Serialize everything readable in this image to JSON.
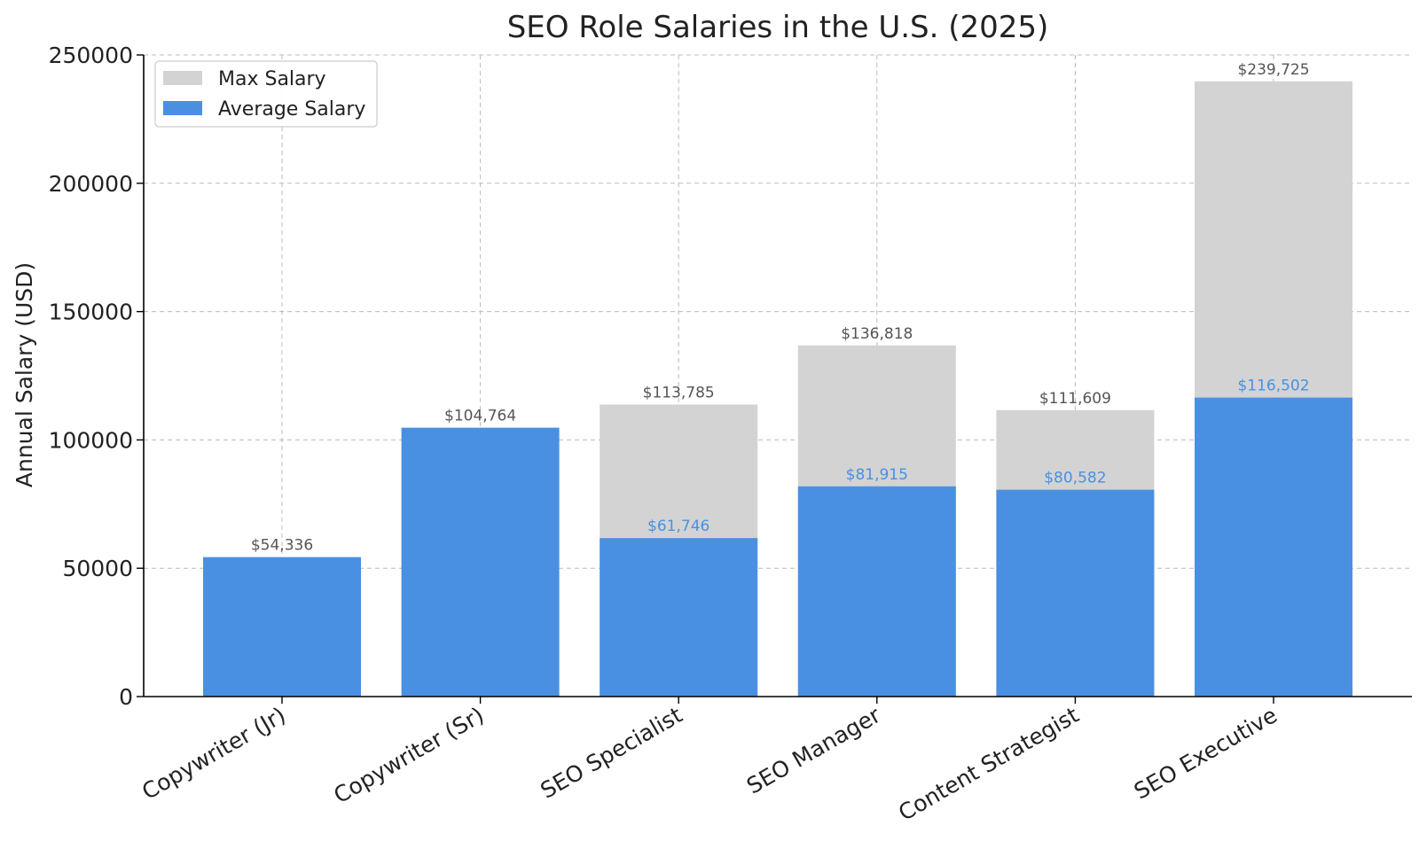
{
  "chart_data": {
    "type": "bar",
    "title": "SEO Role Salaries in the U.S. (2025)",
    "xlabel": "",
    "ylabel": "Annual Salary (USD)",
    "categories": [
      "Copywriter (Jr)",
      "Copywriter (Sr)",
      "SEO Specialist",
      "SEO Manager",
      "Content Strategist",
      "SEO Executive"
    ],
    "series": [
      {
        "name": "Max Salary",
        "values": [
          null,
          null,
          113785,
          136818,
          111609,
          239725
        ],
        "labels": [
          "",
          "",
          "$113,785",
          "$136,818",
          "$111,609",
          "$239,725"
        ],
        "color": "#d3d3d3",
        "label_color": "#555555"
      },
      {
        "name": "Average Salary",
        "values": [
          54336,
          104764,
          61746,
          81915,
          80582,
          116502
        ],
        "labels": [
          "$54,336",
          "$104,764",
          "$61,746",
          "$81,915",
          "$80,582",
          "$116,502"
        ],
        "color": "#4a90e2",
        "label_color_alone": "#555555",
        "label_color_stacked": "#4a90e2"
      }
    ],
    "ylim": [
      0,
      250000
    ],
    "yticks": [
      0,
      50000,
      100000,
      150000,
      200000,
      250000
    ],
    "ytick_labels": [
      "0",
      "50000",
      "100000",
      "150000",
      "200000",
      "250000"
    ],
    "grid": true,
    "legend": "top-left",
    "legend_entries": [
      "Max Salary",
      "Average Salary"
    ]
  }
}
